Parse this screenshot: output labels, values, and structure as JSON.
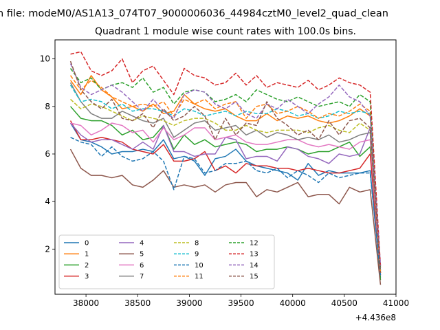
{
  "chart_data": {
    "type": "line",
    "suptitle": "n file: modeM0/AS1A13_074T07_9000006036_44984cztM0_level2_quad_clean",
    "title": "Quadrant 1 module wise count rates with 100.0s bins.",
    "xlabel": "",
    "ylabel": "",
    "x_offset_label": "+4.436e8",
    "xlim": [
      37700,
      41000
    ],
    "ylim": [
      0.1,
      10.8
    ],
    "xticks": [
      38000,
      38500,
      39000,
      39500,
      40000,
      40500,
      41000
    ],
    "xtick_labels": [
      "38000",
      "38500",
      "39000",
      "39500",
      "40000",
      "40500",
      "41000"
    ],
    "yticks": [
      2,
      4,
      6,
      8,
      10
    ],
    "ytick_labels": [
      "2",
      "4",
      "6",
      "8",
      "10"
    ],
    "grid": false,
    "legend": {
      "placement": "lower-left",
      "columns": 4
    },
    "x": [
      37850,
      37950,
      38050,
      38150,
      38250,
      38350,
      38450,
      38550,
      38650,
      38750,
      38850,
      38950,
      39050,
      39150,
      39250,
      39350,
      39450,
      39550,
      39650,
      39750,
      39850,
      39950,
      40050,
      40150,
      40250,
      40350,
      40450,
      40550,
      40650,
      40750,
      40850
    ],
    "series": [
      {
        "name": "0",
        "color": "#1f77b4",
        "style": "solid",
        "values": [
          7.3,
          6.6,
          6.5,
          6.3,
          6.0,
          6.1,
          6.1,
          6.2,
          6.1,
          6.6,
          5.8,
          5.9,
          5.7,
          5.1,
          5.8,
          5.9,
          6.2,
          5.7,
          5.5,
          5.4,
          5.3,
          5.2,
          4.9,
          5.6,
          5.1,
          5.3,
          5.2,
          5.2,
          5.2,
          5.3,
          0.8
        ]
      },
      {
        "name": "1",
        "color": "#ff7f0e",
        "style": "solid",
        "values": [
          9.1,
          8.5,
          9.3,
          8.7,
          8.4,
          7.9,
          8.0,
          7.8,
          8.1,
          7.7,
          7.8,
          8.5,
          8.1,
          7.9,
          7.8,
          7.9,
          7.6,
          7.4,
          7.4,
          7.7,
          7.4,
          7.6,
          7.5,
          7.6,
          7.4,
          7.3,
          7.4,
          7.6,
          7.9,
          7.6,
          1.0
        ]
      },
      {
        "name": "2",
        "color": "#2ca02c",
        "style": "solid",
        "values": [
          8.0,
          7.5,
          7.4,
          7.4,
          7.2,
          6.8,
          7.0,
          6.6,
          6.7,
          7.2,
          6.2,
          6.8,
          6.4,
          6.6,
          6.3,
          6.4,
          6.5,
          6.4,
          6.1,
          6.2,
          6.2,
          6.3,
          6.2,
          6.0,
          6.1,
          6.1,
          6.3,
          6.5,
          5.9,
          6.3,
          0.7
        ]
      },
      {
        "name": "3",
        "color": "#d62728",
        "style": "solid",
        "values": [
          7.4,
          6.6,
          6.6,
          6.7,
          6.6,
          6.5,
          6.2,
          6.1,
          6.0,
          6.4,
          5.7,
          5.7,
          5.8,
          6.1,
          5.3,
          5.5,
          5.2,
          5.6,
          5.5,
          5.5,
          5.4,
          5.4,
          5.3,
          5.4,
          5.3,
          5.2,
          5.2,
          5.3,
          5.4,
          6.0,
          0.9
        ]
      },
      {
        "name": "4",
        "color": "#9467bd",
        "style": "solid",
        "values": [
          7.3,
          6.8,
          6.5,
          6.6,
          6.6,
          6.4,
          6.2,
          6.5,
          6.2,
          7.2,
          6.1,
          6.1,
          5.9,
          6.0,
          6.0,
          6.7,
          6.6,
          5.8,
          5.9,
          5.9,
          5.7,
          6.3,
          6.2,
          5.9,
          5.8,
          5.6,
          6.0,
          5.9,
          6.0,
          7.1,
          1.2
        ]
      },
      {
        "name": "5",
        "color": "#8c564b",
        "style": "solid",
        "values": [
          6.2,
          5.4,
          5.1,
          5.1,
          5.0,
          5.1,
          4.7,
          4.6,
          4.9,
          5.3,
          4.6,
          4.7,
          4.6,
          4.7,
          4.4,
          4.7,
          4.8,
          4.8,
          4.2,
          4.5,
          4.4,
          4.6,
          4.8,
          4.2,
          4.3,
          4.3,
          3.9,
          4.6,
          4.4,
          4.5,
          0.5
        ]
      },
      {
        "name": "6",
        "color": "#e377c2",
        "style": "solid",
        "values": [
          7.3,
          7.2,
          6.8,
          7.0,
          7.3,
          7.2,
          6.9,
          7.0,
          6.5,
          7.1,
          6.6,
          6.8,
          7.1,
          7.1,
          6.6,
          6.7,
          6.8,
          6.5,
          6.4,
          6.4,
          6.5,
          6.6,
          6.6,
          6.4,
          6.3,
          6.4,
          6.3,
          6.2,
          6.5,
          6.6,
          0.9
        ]
      },
      {
        "name": "7",
        "color": "#7f7f7f",
        "style": "solid",
        "values": [
          9.0,
          8.2,
          7.7,
          7.5,
          7.5,
          7.8,
          7.6,
          7.4,
          7.3,
          7.5,
          6.7,
          7.0,
          7.3,
          7.4,
          7.0,
          7.1,
          7.2,
          6.8,
          7.0,
          6.7,
          6.9,
          6.8,
          6.6,
          6.7,
          6.6,
          6.8,
          6.5,
          6.6,
          6.8,
          6.9,
          1.1
        ]
      },
      {
        "name": "8",
        "color": "#bcbd22",
        "style": "dashed",
        "values": [
          8.3,
          7.9,
          8.1,
          8.0,
          7.8,
          7.6,
          7.4,
          7.6,
          7.5,
          7.4,
          7.2,
          7.4,
          7.5,
          7.5,
          7.3,
          7.0,
          7.0,
          7.2,
          7.0,
          6.9,
          7.0,
          7.0,
          7.0,
          6.9,
          7.1,
          7.2,
          7.0,
          6.9,
          7.3,
          7.0,
          1.0
        ]
      },
      {
        "name": "9",
        "color": "#17becf",
        "style": "dashed",
        "values": [
          8.9,
          8.2,
          8.3,
          8.2,
          7.9,
          8.1,
          7.8,
          7.9,
          7.9,
          7.8,
          7.6,
          7.9,
          7.8,
          7.6,
          7.7,
          7.8,
          7.6,
          7.8,
          7.7,
          7.7,
          7.9,
          7.8,
          7.6,
          7.7,
          7.5,
          7.6,
          7.8,
          7.7,
          7.8,
          7.7,
          1.1
        ]
      },
      {
        "name": "10",
        "color": "#1f77b4",
        "style": "dashed",
        "values": [
          6.7,
          6.5,
          6.4,
          5.9,
          6.3,
          5.9,
          5.7,
          5.8,
          6.1,
          5.7,
          4.5,
          5.9,
          5.8,
          5.2,
          5.3,
          5.6,
          5.6,
          5.7,
          5.3,
          5.2,
          5.4,
          5.0,
          5.3,
          5.1,
          4.8,
          5.2,
          5.0,
          5.1,
          5.2,
          5.2,
          0.9
        ]
      },
      {
        "name": "11",
        "color": "#ff7f0e",
        "style": "dashed",
        "values": [
          9.3,
          8.7,
          9.1,
          8.8,
          8.4,
          8.2,
          8.0,
          8.1,
          8.0,
          8.2,
          7.6,
          8.3,
          8.1,
          8.3,
          7.9,
          8.1,
          8.2,
          7.5,
          8.0,
          8.1,
          7.7,
          7.8,
          8.0,
          7.8,
          7.5,
          7.7,
          7.6,
          7.8,
          8.1,
          7.8,
          1.0
        ]
      },
      {
        "name": "12",
        "color": "#2ca02c",
        "style": "dashed",
        "values": [
          9.6,
          9.0,
          9.2,
          8.7,
          8.9,
          9.0,
          8.8,
          9.2,
          8.6,
          8.8,
          8.1,
          8.6,
          8.7,
          8.6,
          8.2,
          8.3,
          8.5,
          8.2,
          8.7,
          8.5,
          8.3,
          8.2,
          8.4,
          8.2,
          8.0,
          8.1,
          8.2,
          8.0,
          8.5,
          8.2,
          1.2
        ]
      },
      {
        "name": "13",
        "color": "#d62728",
        "style": "dashed",
        "values": [
          10.2,
          10.3,
          9.5,
          9.3,
          9.5,
          10.0,
          9.0,
          9.5,
          9.7,
          9.1,
          8.5,
          9.6,
          9.3,
          9.2,
          8.9,
          9.0,
          9.4,
          8.9,
          9.3,
          8.8,
          9.0,
          8.9,
          8.8,
          9.1,
          8.7,
          8.9,
          9.2,
          9.0,
          8.9,
          8.6,
          1.3
        ]
      },
      {
        "name": "14",
        "color": "#9467bd",
        "style": "dashed",
        "values": [
          9.8,
          8.8,
          8.5,
          8.7,
          8.9,
          8.6,
          8.2,
          7.8,
          8.3,
          7.8,
          7.5,
          8.5,
          8.7,
          8.6,
          8.1,
          7.9,
          8.2,
          7.7,
          7.5,
          8.1,
          7.9,
          8.3,
          8.0,
          7.7,
          8.1,
          8.4,
          8.9,
          8.4,
          8.2,
          7.6,
          1.3
        ]
      },
      {
        "name": "15",
        "color": "#8c564b",
        "style": "dashed",
        "values": [
          9.9,
          8.7,
          8.2,
          7.9,
          8.3,
          7.5,
          7.4,
          7.7,
          7.1,
          7.9,
          7.4,
          7.6,
          8.0,
          7.6,
          6.6,
          7.5,
          6.8,
          7.3,
          7.2,
          8.2,
          7.5,
          7.2,
          6.8,
          7.0,
          6.6,
          7.4,
          6.8,
          7.4,
          7.5,
          7.1,
          1.0
        ]
      }
    ]
  }
}
